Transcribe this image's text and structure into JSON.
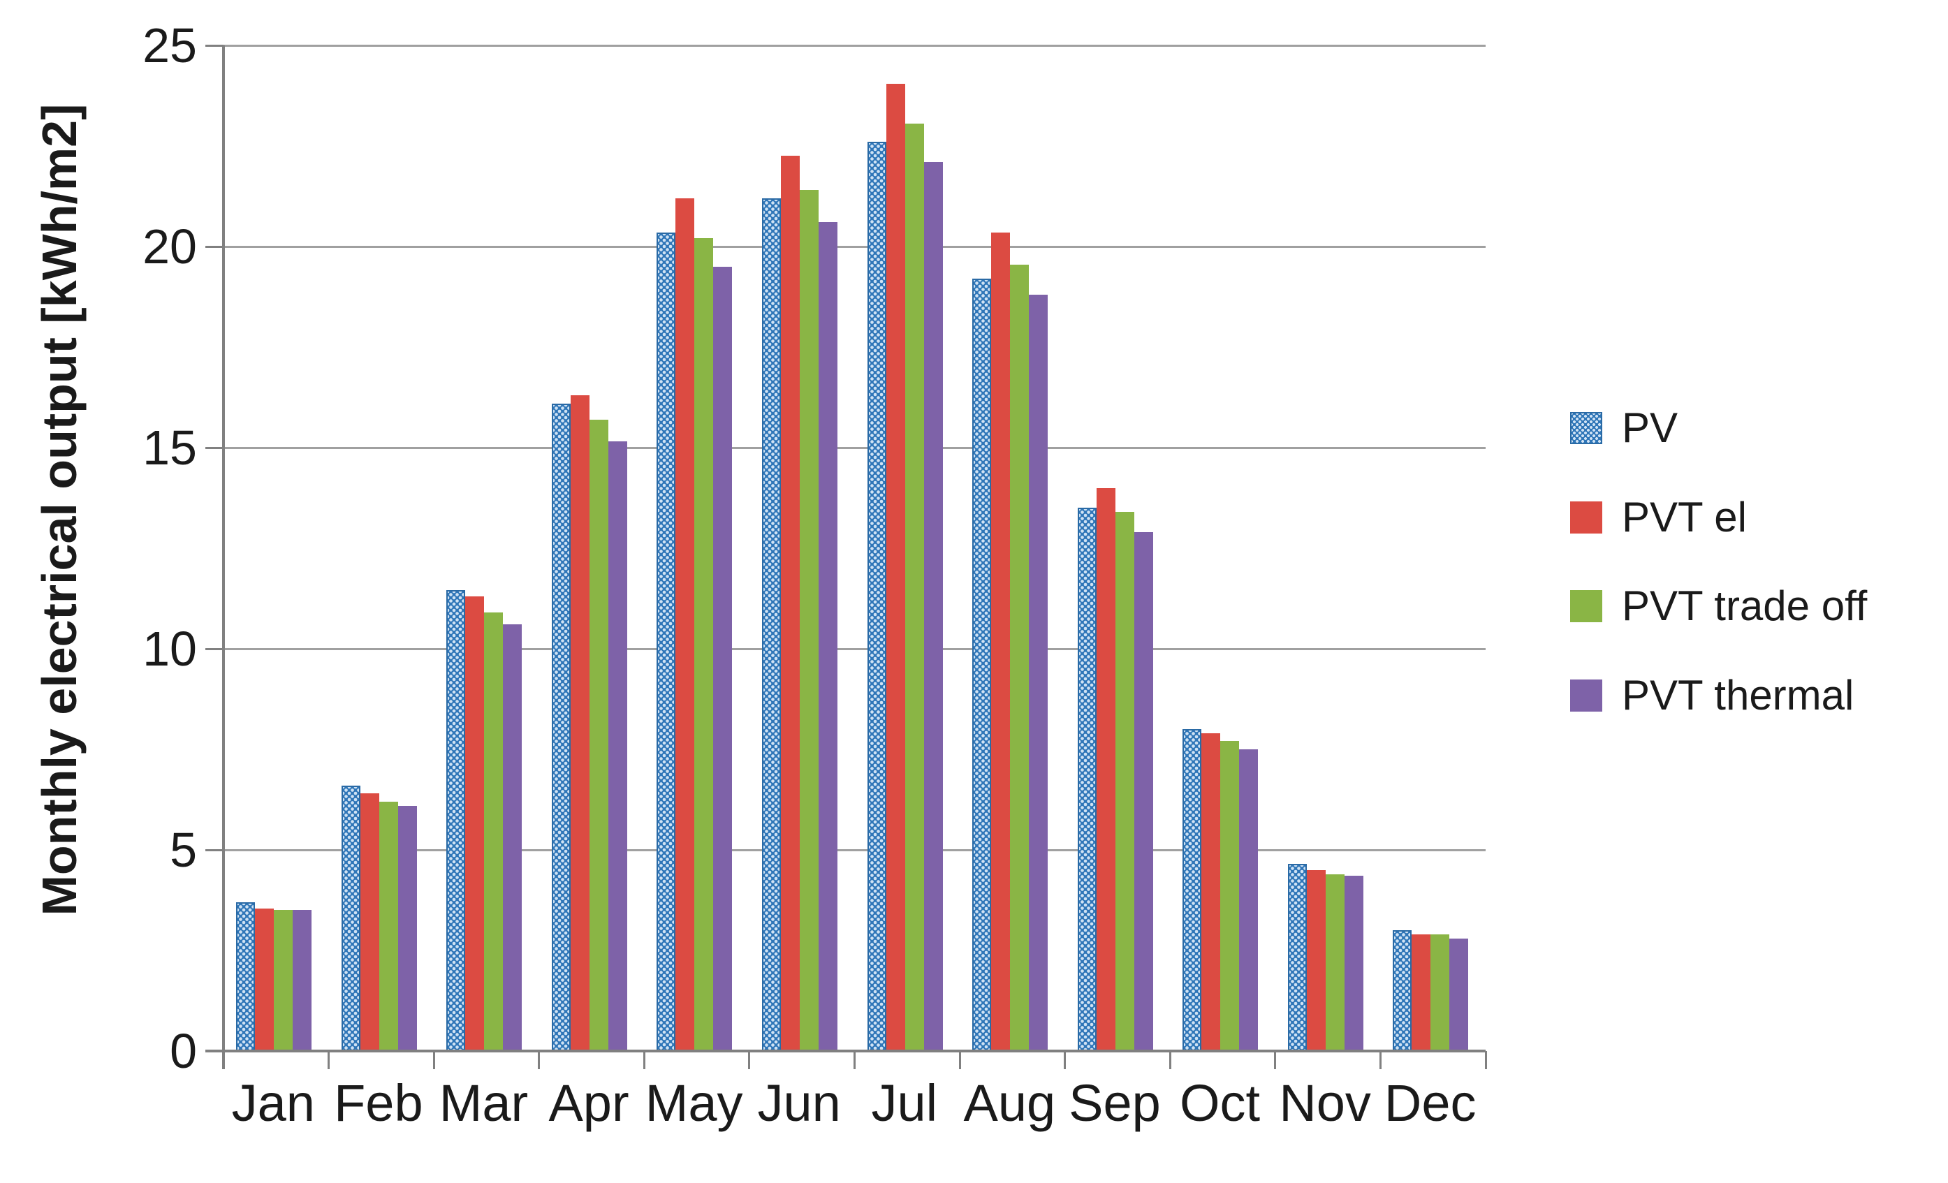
{
  "chart_data": {
    "type": "bar",
    "categories": [
      "Jan",
      "Feb",
      "Mar",
      "Apr",
      "May",
      "Jun",
      "Jul",
      "Aug",
      "Sep",
      "Oct",
      "Nov",
      "Dec"
    ],
    "series": [
      {
        "name": "PV",
        "color": "#2f76b8",
        "pattern": "dots",
        "values": [
          3.7,
          6.6,
          11.45,
          16.1,
          20.35,
          21.2,
          22.6,
          19.2,
          13.5,
          8.0,
          4.65,
          3.0
        ]
      },
      {
        "name": "PVT el",
        "color": "#dc4b42",
        "pattern": "solid",
        "values": [
          3.55,
          6.4,
          11.3,
          16.3,
          21.2,
          22.25,
          24.05,
          20.35,
          14.0,
          7.9,
          4.5,
          2.9
        ]
      },
      {
        "name": "PVT trade off",
        "color": "#8ab545",
        "pattern": "solid",
        "values": [
          3.5,
          6.2,
          10.9,
          15.7,
          20.2,
          21.4,
          23.05,
          19.55,
          13.4,
          7.7,
          4.4,
          2.9
        ]
      },
      {
        "name": "PVT thermal",
        "color": "#7e62a8",
        "pattern": "solid",
        "values": [
          3.5,
          6.1,
          10.6,
          15.15,
          19.5,
          20.6,
          22.1,
          18.8,
          12.9,
          7.5,
          4.35,
          2.8
        ]
      }
    ],
    "title": "",
    "xlabel": "",
    "ylabel": "Monthly electrical output [kWh/m2]",
    "ylim": [
      0,
      25
    ],
    "ytick_step": 5,
    "ytick_labels": [
      "0",
      "5",
      "10",
      "15",
      "20",
      "25"
    ],
    "grid": true,
    "legend_position": "right"
  },
  "legend": {
    "items": [
      {
        "label": "PV"
      },
      {
        "label": "PVT el"
      },
      {
        "label": "PVT trade off"
      },
      {
        "label": "PVT thermal"
      }
    ]
  },
  "colors": {
    "pv_blue": "#2f76b8",
    "pv_blue_dot": "#cfe2f4",
    "pvt_el_red": "#dc4b42",
    "pvt_tradeoff_green": "#8ab545",
    "pvt_thermal_purple": "#7e62a8",
    "gridline": "#a0a0a0",
    "axis": "#808080",
    "text": "#1a1a1a"
  }
}
